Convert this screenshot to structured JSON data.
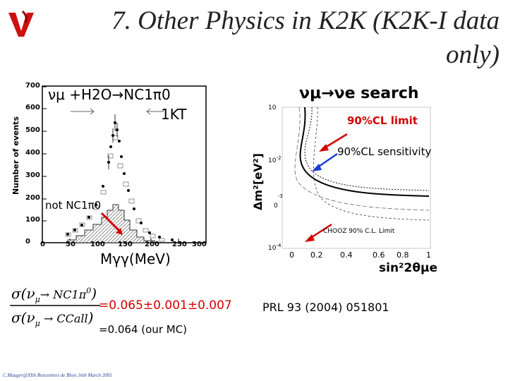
{
  "slide": {
    "title_line1": "7. Other Physics in K2K (K2K-I data",
    "title_line2": "only)",
    "logo_icon": "nu-logo-icon",
    "footer": "C.Mauger@XIth Rencontres de Blois 16th March 2005"
  },
  "left_plot": {
    "ylabel": "Number of events",
    "yticks": [
      "0",
      "100",
      "200",
      "300",
      "400",
      "500",
      "600",
      "700"
    ],
    "xticks": [
      "0",
      "50",
      "100",
      "150",
      "200",
      "250",
      "300"
    ],
    "legend_nc": "νμ +H2O→NC1π0",
    "legend_1kt": "1KT",
    "not_label": "not NC1π0",
    "xlabel": "Mγγ(MeV)"
  },
  "right_plot": {
    "heading": "νμ→νe search",
    "ylabel": "Δm²[eV²]",
    "limit_label": "90%CL limit",
    "sensitivity_label": "90%CL sensitivity",
    "chooz_label": "CHOOZ 90% C.L. Limit",
    "ytick_top": "10",
    "ytick_m2": "10",
    "ytick_m3": "0",
    "ytick_m4": "10",
    "exp_m2": "-2",
    "exp_m3": "-3",
    "exp_m4": "-4",
    "xticks": [
      "0",
      "0.2",
      "0.4",
      "0.6",
      "0.8",
      "1"
    ],
    "xlabel": "sin²2θμe"
  },
  "ratio": {
    "num_sigma": "σ",
    "num_nu": "ν",
    "num_mu": "μ",
    "num_target": "→ NC1π",
    "num_zero": "0",
    "den_sigma": "σ",
    "den_nu": "ν",
    "den_mu": "μ",
    "den_target": "CCall",
    "value": "=0.065±0.001±0.007",
    "mc": "=0.064 (our MC)"
  },
  "citation": "PRL 93 (2004) 051801",
  "colors": {
    "accent_red": "#d40000",
    "arrow_blue": "#1a3bd6",
    "logo_red": "#cc1111"
  }
}
